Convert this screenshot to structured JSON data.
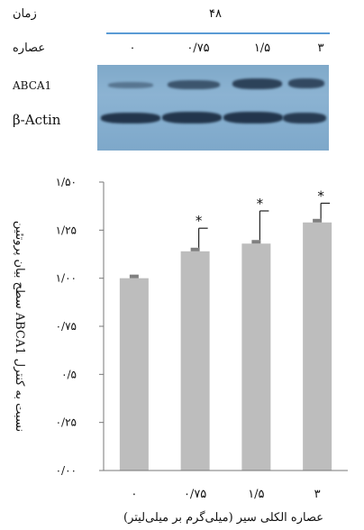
{
  "header": {
    "time_label": "زمان",
    "time_value": "۴۸",
    "extract_label": "عصاره",
    "doses": [
      "۰",
      "۰/۷۵",
      "۱/۵",
      "۳"
    ]
  },
  "blot": {
    "rows": [
      {
        "label": "ABCA1",
        "intensity": [
          0.45,
          0.7,
          0.85,
          0.8
        ]
      },
      {
        "label": "β-Actin",
        "intensity": [
          0.95,
          0.95,
          0.95,
          0.9
        ]
      }
    ],
    "bg_color": "#86afcf",
    "band_color": "#1d2f45"
  },
  "chart_data": {
    "type": "bar",
    "categories": [
      "۰",
      "۰/۷۵",
      "۱/۵",
      "۳"
    ],
    "values": [
      1.0,
      1.14,
      1.18,
      1.29
    ],
    "error_plus": [
      0.0,
      0.12,
      0.17,
      0.1
    ],
    "significance": [
      "",
      "*",
      "*",
      "*"
    ],
    "ylim": [
      0,
      1.5
    ],
    "yticks": [
      0,
      0.25,
      0.5,
      0.75,
      1.0,
      1.25,
      1.5
    ],
    "ytick_labels": [
      "۰/۰۰",
      "۰/۲۵",
      "۰/۵",
      "۰/۷۵",
      "۱/۰۰",
      "۱/۲۵",
      "۱/۵۰"
    ],
    "xlabel": "عصاره الکلی سیر (میلی‌گرم بر میلی‌لیتر)",
    "ylabel": "سطح بیان پروتئین ABCA1 نسبت به کنترل",
    "bar_color": "#bdbdbd",
    "grid": false
  }
}
